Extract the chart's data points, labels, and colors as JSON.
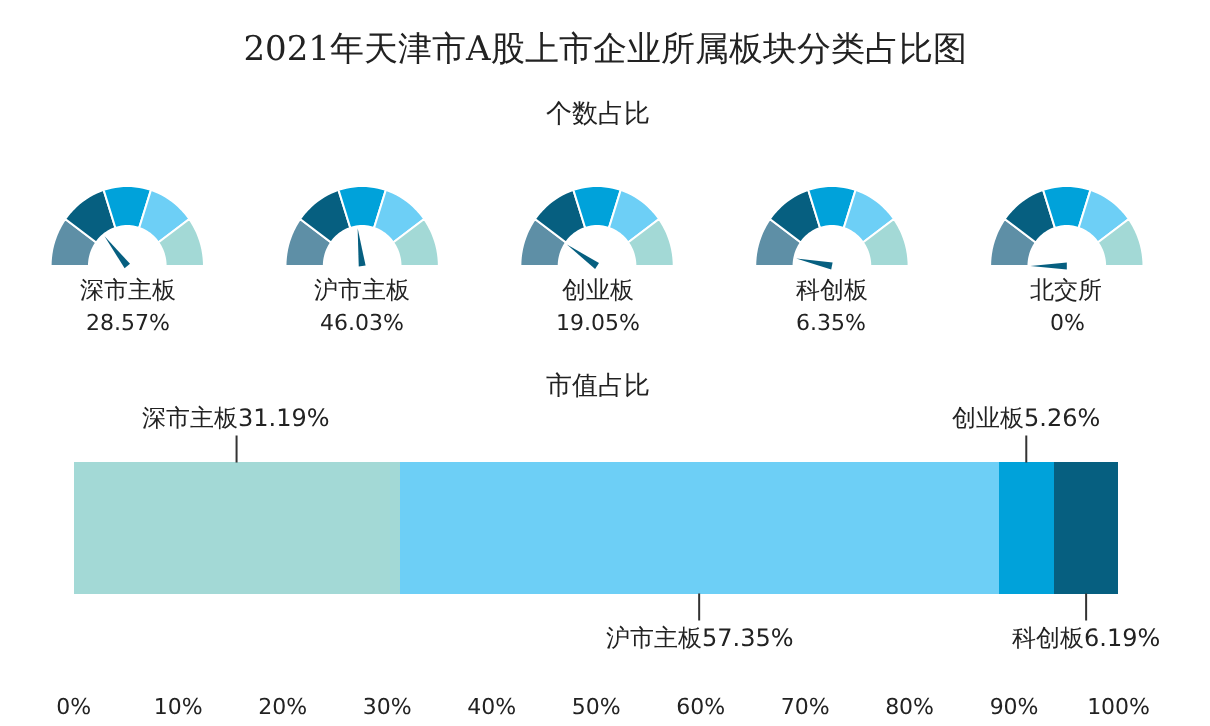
{
  "chart_data": [
    {
      "type": "other",
      "title": "2021年天津市A股上市企业所属板块分类占比图",
      "subtitle": "个数占比",
      "categories": [
        "深市主板",
        "沪市主板",
        "创业板",
        "科创板",
        "北交所"
      ],
      "values": [
        28.57,
        46.03,
        19.05,
        6.35,
        0
      ],
      "value_labels": [
        "28.57%",
        "46.03%",
        "19.05%",
        "6.35%",
        "0%"
      ],
      "colors": [
        "#5e8fa6",
        "#065f80",
        "#00a2da",
        "#6dcff6",
        "#a3d9d6"
      ]
    },
    {
      "type": "bar",
      "orientation": "horizontal",
      "stacked": true,
      "subtitle": "市值占比",
      "categories": [
        null
      ],
      "series": [
        {
          "color": "#a3d9d6",
          "values": [
            31.19
          ],
          "value_labels": [
            "深市主板31.19%"
          ]
        },
        {
          "color": "#6dcff6",
          "values": [
            57.35
          ],
          "value_labels": [
            "沪市主板57.35%"
          ]
        },
        {
          "color": "#00a2da",
          "values": [
            5.26
          ],
          "value_labels": [
            "创业板5.26%"
          ]
        },
        {
          "color": "#065f80",
          "values": [
            6.19
          ],
          "value_labels": [
            "科创板6.19%"
          ]
        }
      ],
      "xlim": [
        0,
        100
      ],
      "xticks": [
        {
          "value": 0,
          "label": "0%"
        },
        {
          "value": 10,
          "label": "10%"
        },
        {
          "value": 20,
          "label": "20%"
        },
        {
          "value": 30,
          "label": "30%"
        },
        {
          "value": 40,
          "label": "40%"
        },
        {
          "value": 50,
          "label": "50%"
        },
        {
          "value": 60,
          "label": "60%"
        },
        {
          "value": 70,
          "label": "70%"
        },
        {
          "value": 80,
          "label": "80%"
        },
        {
          "value": 90,
          "label": "90%"
        },
        {
          "value": 100,
          "label": "100%"
        }
      ]
    }
  ]
}
